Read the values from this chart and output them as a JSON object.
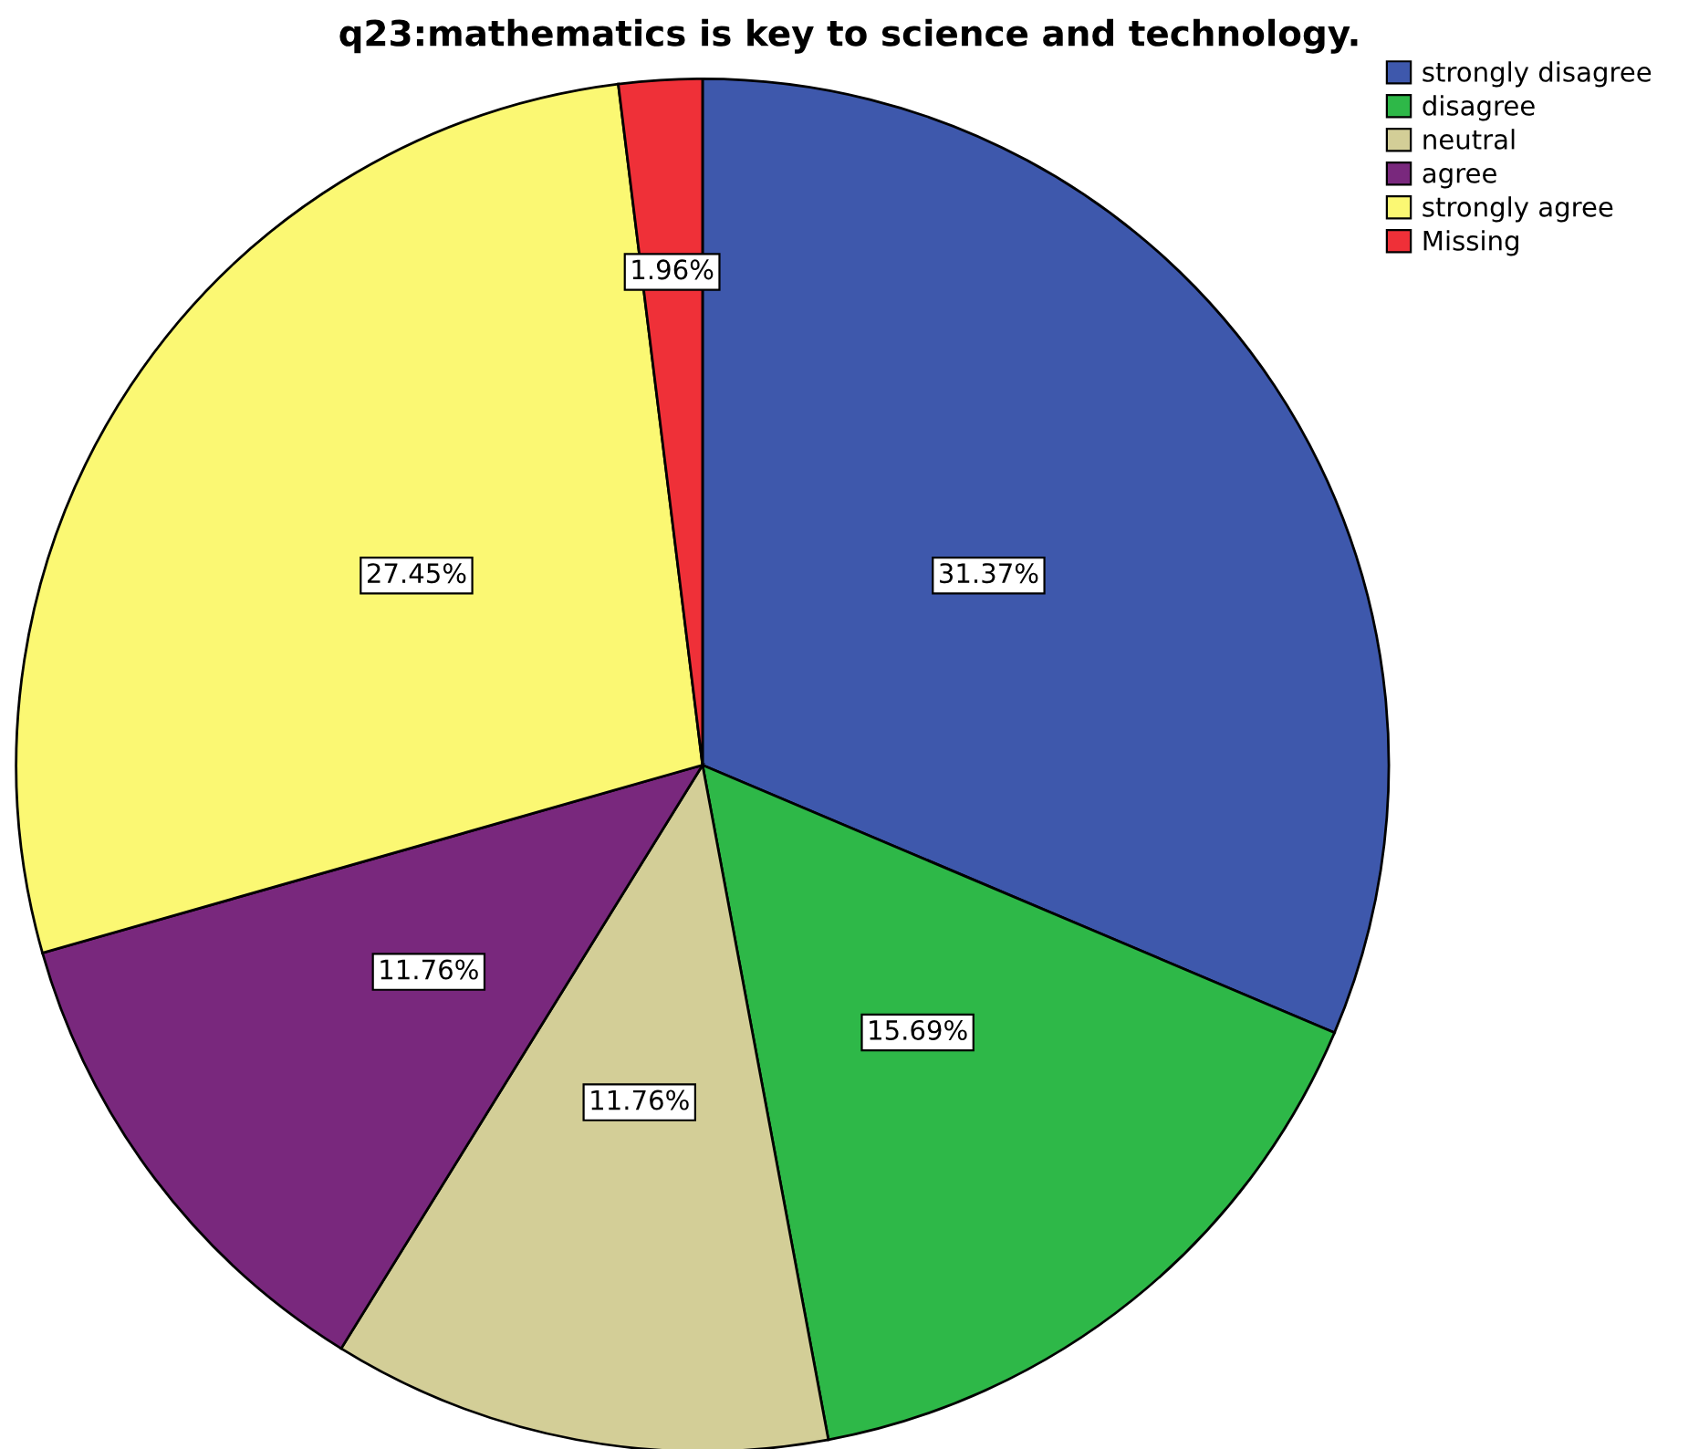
{
  "chart_data": {
    "type": "pie",
    "title": "q23:mathematics is key to science and technology.",
    "categories": [
      "strongly disagree",
      "disagree",
      "neutral",
      "agree",
      "strongly agree",
      "Missing"
    ],
    "values": [
      31.37,
      15.69,
      11.76,
      11.76,
      27.45,
      1.96
    ],
    "colors": [
      "#3e58ac",
      "#2eb848",
      "#d3ce97",
      "#79287d",
      "#fbf873",
      "#ef3038"
    ],
    "value_labels": [
      "31.37%",
      "15.69%",
      "11.76%",
      "11.76%",
      "27.45%",
      "1.96%"
    ],
    "legend": "top right"
  }
}
